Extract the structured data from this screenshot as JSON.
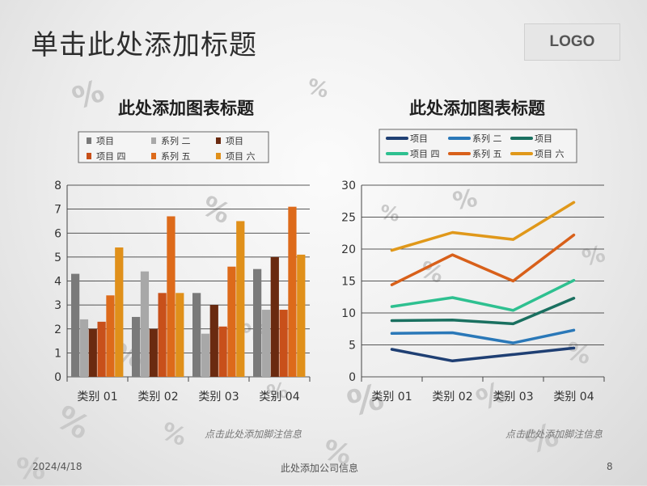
{
  "slide": {
    "title": "单击此处添加标题",
    "logo": "LOGO",
    "footer_date": "2024/4/18",
    "footer_center": "此处添加公司信息",
    "footer_page": "8",
    "deco_glyph": "%"
  },
  "colors": {
    "title_text": "#2e2e2e",
    "axis_text": "#333333",
    "grid": "#222222"
  },
  "chart_data": [
    {
      "type": "bar",
      "title": "此处添加图表标题",
      "categories": [
        "类别 01",
        "类别 02",
        "类别 03",
        "类别 04"
      ],
      "ylim": [
        0,
        8
      ],
      "yticks": [
        0,
        1,
        2,
        3,
        4,
        5,
        6,
        7,
        8
      ],
      "legend_position": "top",
      "grid": true,
      "footnote": "点击此处添加脚注信息",
      "series": [
        {
          "name": "项目",
          "color": "#7a7a7a",
          "values": [
            4.3,
            2.5,
            3.5,
            4.5
          ]
        },
        {
          "name": "系列 二",
          "color": "#a8a8a8",
          "values": [
            2.4,
            4.4,
            1.8,
            2.8
          ]
        },
        {
          "name": "项目",
          "color": "#6a2a10",
          "values": [
            2.0,
            2.0,
            3.0,
            5.0
          ]
        },
        {
          "name": "项目 四",
          "color": "#c8501a",
          "values": [
            2.3,
            3.5,
            2.1,
            2.8
          ]
        },
        {
          "name": "系列 五",
          "color": "#dd6a1a",
          "values": [
            3.4,
            6.7,
            4.6,
            7.1
          ]
        },
        {
          "name": "项目 六",
          "color": "#e0901a",
          "values": [
            5.4,
            3.5,
            6.5,
            5.1
          ]
        }
      ]
    },
    {
      "type": "line",
      "title": "此处添加图表标题",
      "categories": [
        "类别 01",
        "类别 02",
        "类别 03",
        "类别 04"
      ],
      "ylim": [
        0,
        30
      ],
      "yticks": [
        0,
        5,
        10,
        15,
        20,
        25,
        30
      ],
      "legend_position": "top",
      "grid": true,
      "footnote": "点击此处添加脚注信息",
      "series": [
        {
          "name": "项目",
          "color": "#1f3f73",
          "values": [
            4.3,
            2.5,
            3.5,
            4.5
          ]
        },
        {
          "name": "系列 二",
          "color": "#2a78b8",
          "values": [
            6.8,
            6.9,
            5.3,
            7.3
          ]
        },
        {
          "name": "项目",
          "color": "#1a7060",
          "values": [
            8.8,
            8.9,
            8.3,
            12.3
          ]
        },
        {
          "name": "项目 四",
          "color": "#2ec090",
          "values": [
            11.0,
            12.4,
            10.4,
            15.1
          ]
        },
        {
          "name": "系列 五",
          "color": "#d8601a",
          "values": [
            14.4,
            19.1,
            15.0,
            22.2
          ]
        },
        {
          "name": "项目 六",
          "color": "#e0981a",
          "values": [
            19.8,
            22.6,
            21.5,
            27.3
          ]
        }
      ]
    }
  ]
}
